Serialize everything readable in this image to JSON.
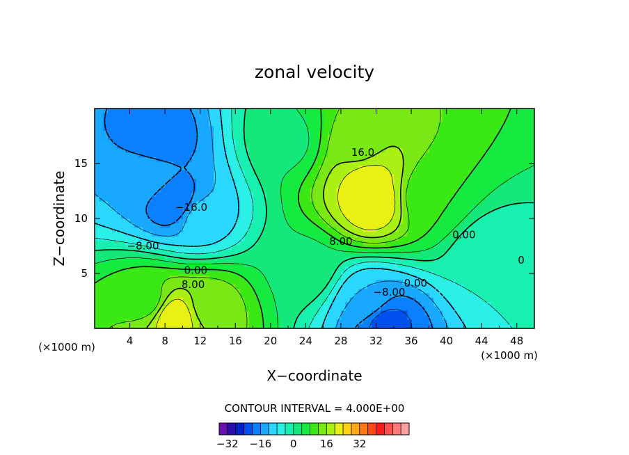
{
  "chart_data": {
    "type": "heatmap",
    "title": "zonal velocity",
    "xlabel": "X−coordinate",
    "ylabel": "Z−coordinate",
    "x_unit": "(×1000 m)",
    "z_unit": "(×1000 m)",
    "xlim": [
      0,
      50
    ],
    "ylim": [
      0,
      20
    ],
    "x_ticks": [
      "4",
      "8",
      "12",
      "16",
      "20",
      "24",
      "28",
      "32",
      "36",
      "40",
      "44",
      "48"
    ],
    "y_ticks": [
      "5",
      "10",
      "15"
    ],
    "contour_interval_text": "CONTOUR INTERVAL = 4.000E+00",
    "contour_labels": [
      {
        "text": "16.0",
        "x": 30.5,
        "z": 16.0
      },
      {
        "text": "−16.0",
        "x": 11.0,
        "z": 11.0
      },
      {
        "text": "−8.00",
        "x": 5.5,
        "z": 7.5
      },
      {
        "text": "0.00",
        "x": 11.5,
        "z": 5.3
      },
      {
        "text": "8.00",
        "x": 11.2,
        "z": 4.0
      },
      {
        "text": "8.00",
        "x": 28.0,
        "z": 7.9
      },
      {
        "text": "0.00",
        "x": 36.5,
        "z": 4.1
      },
      {
        "text": "−8.00",
        "x": 33.5,
        "z": 3.3
      },
      {
        "text": "0.00",
        "x": 42.0,
        "z": 8.5
      },
      {
        "text": "0",
        "x": 48.5,
        "z": 6.2
      }
    ],
    "field_centers": [
      {
        "x": 7,
        "z": 17,
        "u": -20
      },
      {
        "x": 9,
        "z": 11.5,
        "u": -20
      },
      {
        "x": 6,
        "z": 14,
        "u": -12
      },
      {
        "x": 12,
        "z": 10,
        "u": -10
      },
      {
        "x": 31.5,
        "z": 11.5,
        "u": 24
      },
      {
        "x": 31,
        "z": 13.5,
        "u": 22
      },
      {
        "x": 30,
        "z": 16.5,
        "u": 14
      },
      {
        "x": 9,
        "z": 1,
        "u": 24
      },
      {
        "x": 13,
        "z": 2,
        "u": 14
      },
      {
        "x": 6,
        "z": 2.5,
        "u": 10
      },
      {
        "x": 33,
        "z": 0.5,
        "u": -22
      },
      {
        "x": 31,
        "z": 2.5,
        "u": -12
      },
      {
        "x": 45,
        "z": 6.5,
        "u": -4
      },
      {
        "x": 24,
        "z": 5.5,
        "u": 3
      },
      {
        "x": 38,
        "z": 12,
        "u": 8
      },
      {
        "x": 22,
        "z": 17,
        "u": 3
      }
    ],
    "colorbar": {
      "colors": [
        "#6a0fb0",
        "#2a0fa8",
        "#0020cc",
        "#0050ee",
        "#0a80ff",
        "#18a8ff",
        "#2ad8ff",
        "#2af0e8",
        "#18f0b0",
        "#14e87a",
        "#14ea40",
        "#3ae814",
        "#7ae814",
        "#aaf014",
        "#e8f014",
        "#ffd014",
        "#ffa814",
        "#ff7a14",
        "#ff4a14",
        "#ff1a1a",
        "#ff5050",
        "#ff7878",
        "#ffa0a0"
      ],
      "min": -36,
      "max": 56,
      "step": 4,
      "tick_labels": [
        {
          "text": "−32",
          "value": -32
        },
        {
          "text": "−16",
          "value": -16
        },
        {
          "text": "0",
          "value": 0
        },
        {
          "text": "16",
          "value": 16
        },
        {
          "text": "32",
          "value": 32
        }
      ]
    }
  }
}
